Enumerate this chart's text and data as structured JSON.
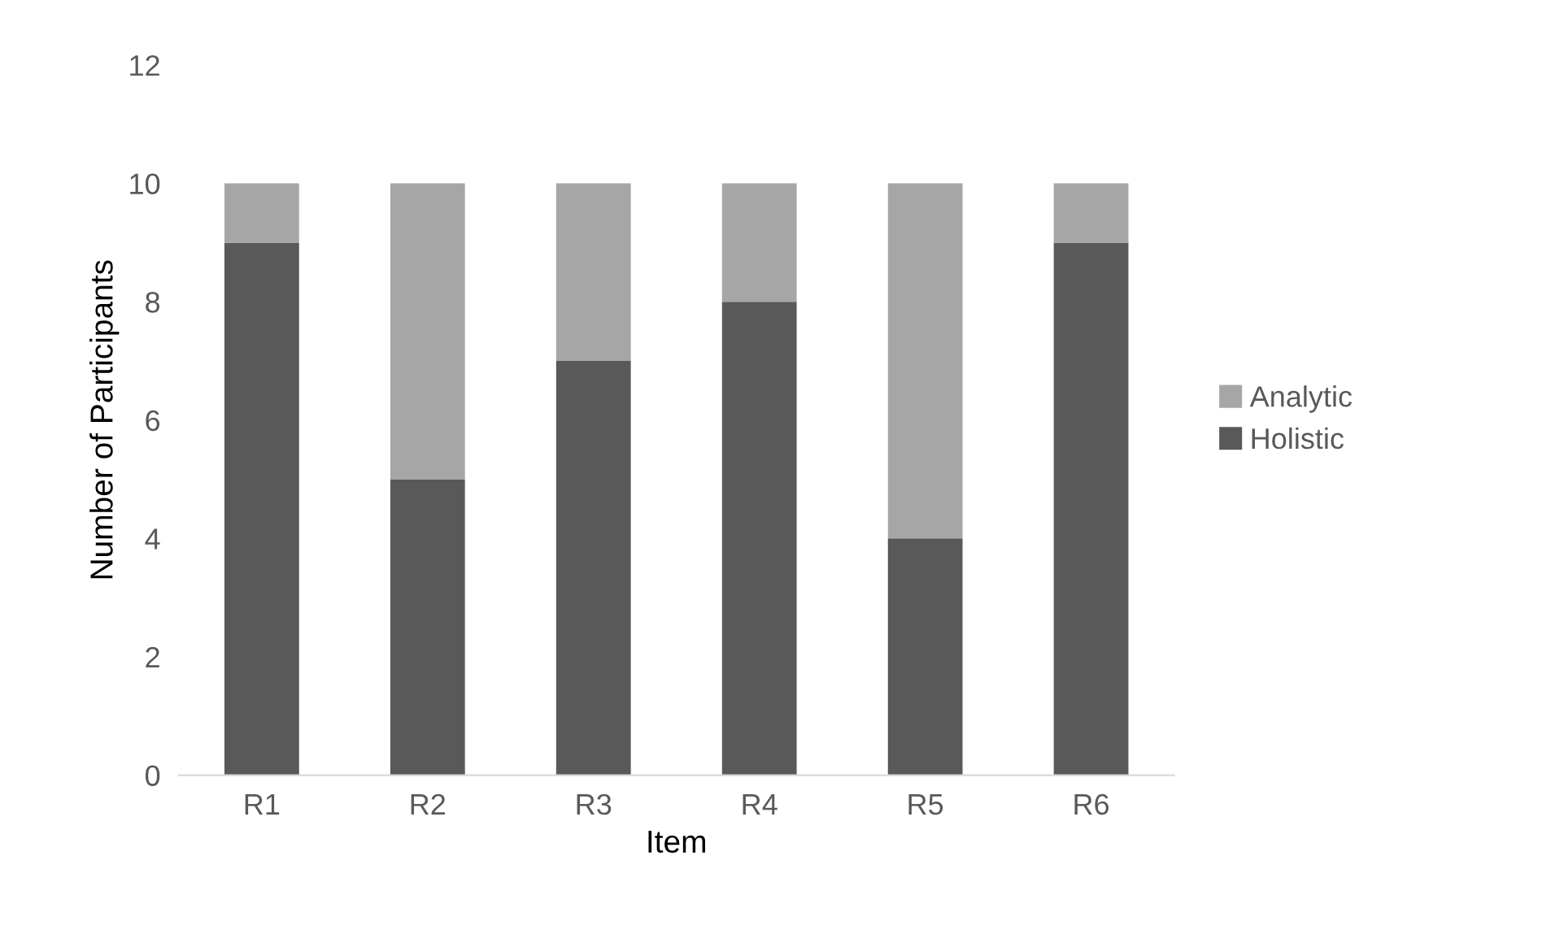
{
  "chart_data": {
    "type": "bar",
    "stacked": true,
    "xlabel": "Item",
    "ylabel": "Number of Participants",
    "categories": [
      "R1",
      "R2",
      "R3",
      "R4",
      "R5",
      "R6"
    ],
    "series": [
      {
        "name": "Holistic",
        "color": "#595959",
        "values": [
          9,
          5,
          7,
          8,
          4,
          9
        ]
      },
      {
        "name": "Analytic",
        "color": "#a6a6a6",
        "values": [
          1,
          5,
          3,
          2,
          6,
          1
        ]
      }
    ],
    "ylim": [
      0,
      12
    ],
    "yticks": [
      0,
      2,
      4,
      6,
      8,
      10,
      12
    ],
    "grid": false,
    "legend": "right"
  }
}
